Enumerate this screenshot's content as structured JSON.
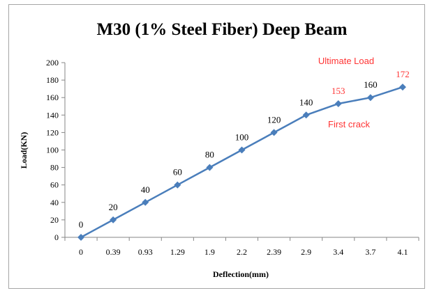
{
  "chart_data": {
    "type": "line",
    "title": "M30 (1% Steel Fiber) Deep Beam",
    "xlabel": "Deflection(mm)",
    "ylabel": "Load(KN)",
    "categories": [
      "0",
      "0.39",
      "0.93",
      "1.29",
      "1.9",
      "2.2",
      "2.39",
      "2.9",
      "3.4",
      "3.7",
      "4.1"
    ],
    "series": [
      {
        "values": [
          0,
          20,
          40,
          60,
          80,
          100,
          120,
          140,
          153,
          160,
          172
        ],
        "color": "#4a7ebb"
      }
    ],
    "data_labels": [
      "0",
      "20",
      "40",
      "60",
      "80",
      "100",
      "120",
      "140",
      "153",
      "160",
      "172"
    ],
    "highlighted_labels": [
      "153",
      "172"
    ],
    "highlight_color": "#ff3333",
    "ylim": [
      0,
      200
    ],
    "yticks": [
      0,
      20,
      40,
      60,
      80,
      100,
      120,
      140,
      160,
      180,
      200
    ],
    "grid": false,
    "legend": "none",
    "annotations": [
      {
        "text": "Ultimate Load",
        "near": "172"
      },
      {
        "text": "First crack",
        "near": "153"
      }
    ]
  }
}
